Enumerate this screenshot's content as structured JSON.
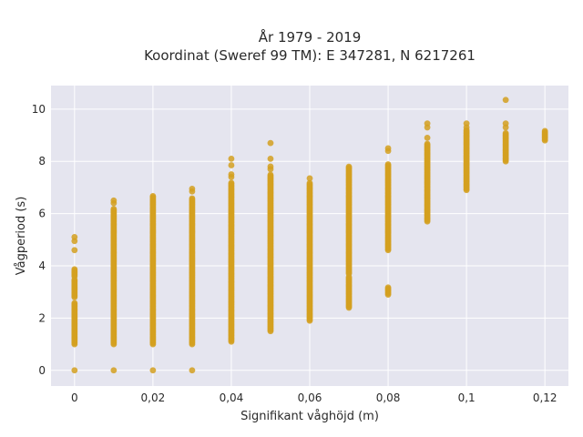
{
  "chart_data": {
    "type": "scatter",
    "title_line1": "År 1979 - 2019",
    "title_line2": "Koordinat (Sweref 99 TM): E 347281, N 6217261",
    "xlabel": "Signifikant våghöjd (m)",
    "ylabel": "Vågperiod (s)",
    "xlim": [
      -0.006,
      0.126
    ],
    "ylim": [
      -0.6,
      10.9
    ],
    "xticks": [
      0,
      0.02,
      0.04,
      0.06,
      0.08,
      0.1,
      0.12
    ],
    "xtick_labels": [
      "0",
      "0,02",
      "0,04",
      "0,06",
      "0,08",
      "0,1",
      "0,12"
    ],
    "yticks": [
      0,
      2,
      4,
      6,
      8,
      10
    ],
    "ytick_labels": [
      "0",
      "2",
      "4",
      "6",
      "8",
      "10"
    ],
    "grid": true,
    "marker_color": "#d4a020",
    "plot_bg": "#e5e5ef",
    "point_columns": [
      {
        "x": 0.0,
        "dense_ranges": [
          [
            1.0,
            2.6
          ],
          [
            2.8,
            3.5
          ],
          [
            3.6,
            3.9
          ]
        ],
        "outliers": [
          0,
          4.6,
          4.95,
          5.1
        ]
      },
      {
        "x": 0.01,
        "dense_ranges": [
          [
            1.0,
            6.2
          ]
        ],
        "outliers": [
          0,
          6.4,
          6.5
        ]
      },
      {
        "x": 0.02,
        "dense_ranges": [
          [
            1.0,
            6.7
          ]
        ],
        "outliers": [
          0
        ]
      },
      {
        "x": 0.03,
        "dense_ranges": [
          [
            1.0,
            6.6
          ]
        ],
        "outliers": [
          0,
          6.85,
          6.95
        ]
      },
      {
        "x": 0.04,
        "dense_ranges": [
          [
            1.1,
            7.2
          ]
        ],
        "outliers": [
          7.4,
          7.5,
          7.85,
          8.1
        ]
      },
      {
        "x": 0.05,
        "dense_ranges": [
          [
            1.5,
            7.5
          ]
        ],
        "outliers": [
          7.7,
          7.8,
          8.1,
          8.7
        ]
      },
      {
        "x": 0.06,
        "dense_ranges": [
          [
            1.9,
            7.2
          ]
        ],
        "outliers": [
          7.35
        ]
      },
      {
        "x": 0.07,
        "dense_ranges": [
          [
            2.4,
            3.6
          ],
          [
            3.7,
            7.8
          ]
        ],
        "outliers": []
      },
      {
        "x": 0.08,
        "dense_ranges": [
          [
            2.9,
            3.2
          ],
          [
            4.6,
            7.9
          ]
        ],
        "outliers": [
          8.4,
          8.5
        ]
      },
      {
        "x": 0.09,
        "dense_ranges": [
          [
            5.7,
            8.7
          ]
        ],
        "outliers": [
          8.9,
          9.3,
          9.45
        ]
      },
      {
        "x": 0.1,
        "dense_ranges": [
          [
            6.9,
            9.2
          ]
        ],
        "outliers": [
          9.3,
          9.45
        ]
      },
      {
        "x": 0.11,
        "dense_ranges": [
          [
            8.0,
            9.1
          ]
        ],
        "outliers": [
          9.3,
          9.45,
          10.35
        ]
      },
      {
        "x": 0.12,
        "dense_ranges": [
          [
            8.8,
            9.2
          ]
        ],
        "outliers": []
      }
    ]
  }
}
